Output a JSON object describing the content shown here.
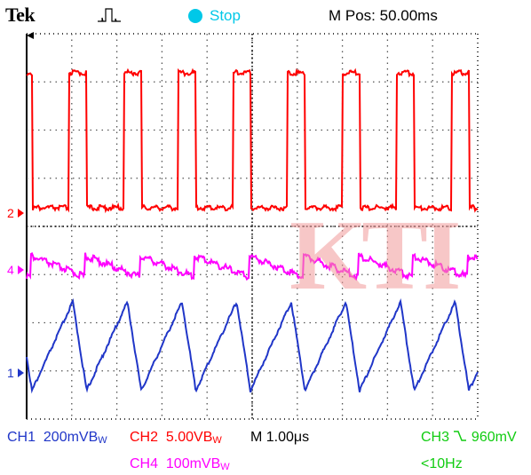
{
  "header": {
    "brand": "Tek",
    "trigger_icon": "trigger-pulse-icon",
    "status": "Stop",
    "position": "M Pos: 50.00ms"
  },
  "colors": {
    "ch1": "#2036c8",
    "ch2": "#ff0000",
    "ch3": "#10cc10",
    "ch4": "#ff00ff",
    "status": "#00c8e8",
    "watermark": "#f29a9a"
  },
  "channels": {
    "ch1": {
      "name": "CH1",
      "scale": "200mV",
      "bw": "B",
      "bw_sub": "W"
    },
    "ch2": {
      "name": "CH2",
      "scale": "5.00V",
      "bw": "B",
      "bw_sub": "W"
    },
    "ch4": {
      "name": "CH4",
      "scale": "100mV",
      "bw": "B",
      "bw_sub": "W"
    },
    "ch3": {
      "name": "CH3",
      "slope": "falling-edge-icon",
      "level": "960mV"
    }
  },
  "markers": {
    "ch2": "2",
    "ch4": "4",
    "ch1": "1"
  },
  "timebase": "M 1.00μs",
  "frequency": "<10Hz",
  "watermark": "KTI"
}
